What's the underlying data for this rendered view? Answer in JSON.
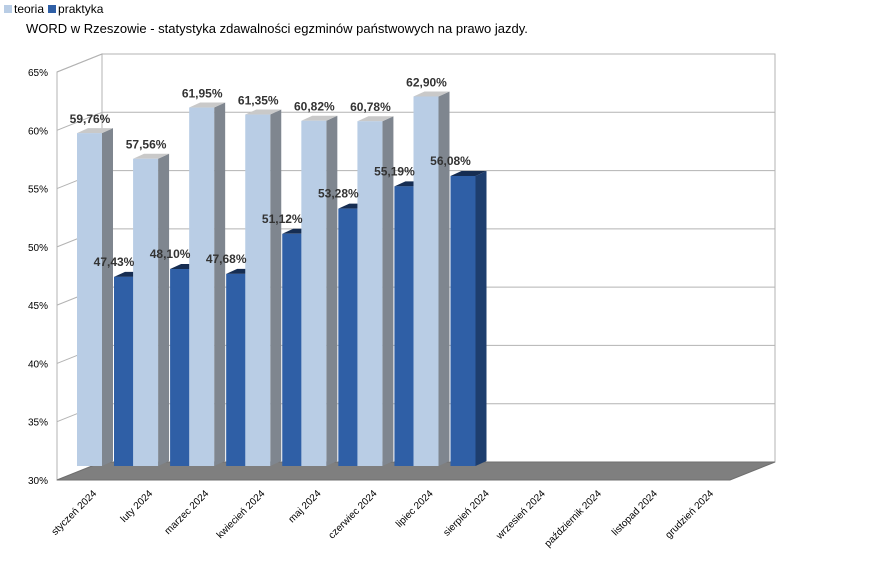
{
  "chart_data": {
    "type": "bar",
    "title": "WORD w Rzeszowie - statystyka zdawalności egzminów państwowych na prawo jazdy.",
    "xlabel": "",
    "ylabel": "",
    "ylim": [
      30,
      65
    ],
    "yticks": [
      "30%",
      "35%",
      "40%",
      "45%",
      "50%",
      "55%",
      "60%",
      "65%"
    ],
    "categories": [
      "styczeń 2024",
      "luty 2024",
      "marzec 2024",
      "kwiecień 2024",
      "maj 2024",
      "czerwiec 2024",
      "lipiec 2024",
      "sierpień 2024",
      "wrzesień 2024",
      "październik 2024",
      "listopad 2024",
      "grudzień 2024"
    ],
    "series": [
      {
        "name": "teoria",
        "color": "#b9cde5",
        "values": [
          59.76,
          57.56,
          61.95,
          61.35,
          60.82,
          60.78,
          62.9,
          null,
          null,
          null,
          null,
          null
        ],
        "labels": [
          "59,76%",
          "57,56%",
          "61,95%",
          "61,35%",
          "60,82%",
          "60,78%",
          "62,90%",
          "",
          "",
          "",
          "",
          ""
        ]
      },
      {
        "name": "praktyka",
        "color": "#2f5fa6",
        "values": [
          47.43,
          48.1,
          47.68,
          51.12,
          53.28,
          55.19,
          56.08,
          null,
          null,
          null,
          null,
          null
        ],
        "labels": [
          "47,43%",
          "48,10%",
          "47,68%",
          "51,12%",
          "53,28%",
          "55,19%",
          "56,08%",
          "",
          "",
          "",
          "",
          ""
        ]
      }
    ],
    "grid": true,
    "legend": "top-left",
    "three_d": true
  }
}
